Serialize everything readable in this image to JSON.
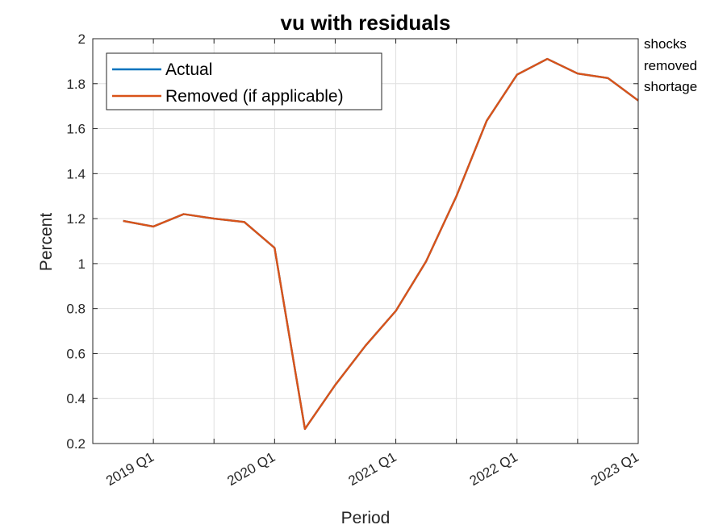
{
  "chart_data": {
    "type": "line",
    "title": "vu with residuals",
    "xlabel": "Period",
    "ylabel": "Percent",
    "ylim": [
      0.2,
      2
    ],
    "yticks": [
      "0.2",
      "0.4",
      "0.6",
      "0.8",
      "1",
      "1.2",
      "1.4",
      "1.6",
      "1.8",
      "2"
    ],
    "xlim": [
      "2018 Q3",
      "2023 Q1"
    ],
    "xtick_labels": [
      "2019 Q1",
      "2020 Q1",
      "2021 Q1",
      "2022 Q1",
      "2023 Q1"
    ],
    "grid": true,
    "legend_position": "top-left",
    "x": [
      "2018 Q4",
      "2019 Q1",
      "2019 Q2",
      "2019 Q3",
      "2019 Q4",
      "2020 Q1",
      "2020 Q2",
      "2020 Q3",
      "2020 Q4",
      "2021 Q1",
      "2021 Q2",
      "2021 Q3",
      "2021 Q4",
      "2022 Q1",
      "2022 Q2",
      "2022 Q3",
      "2022 Q4",
      "2023 Q1"
    ],
    "series": [
      {
        "name": "Actual",
        "color": "#0072BD",
        "values": [
          1.19,
          1.165,
          1.22,
          1.2,
          1.185,
          1.07,
          0.265,
          0.46,
          0.635,
          0.79,
          1.01,
          1.3,
          1.635,
          1.84,
          1.91,
          1.845,
          1.825,
          1.725
        ]
      },
      {
        "name": "Removed (if applicable)",
        "color": "#D95319",
        "values": [
          1.19,
          1.165,
          1.22,
          1.2,
          1.185,
          1.07,
          0.265,
          0.46,
          0.635,
          0.79,
          1.01,
          1.3,
          1.635,
          1.84,
          1.91,
          1.845,
          1.825,
          1.725
        ]
      }
    ],
    "annotation_lines": [
      "shocks",
      "removed",
      "shortage"
    ]
  }
}
